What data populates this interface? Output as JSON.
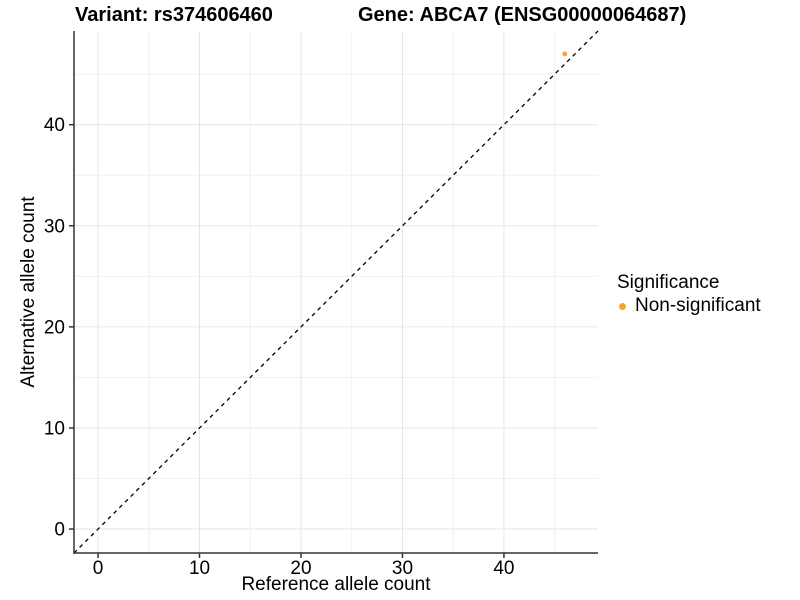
{
  "chart_data": {
    "type": "scatter",
    "title": "Variant: rs374606460        Gene: ABCA7 (ENSG00000064687)",
    "title_parts": [
      "Variant: rs374606460",
      "Gene: ABCA7 (ENSG00000064687)"
    ],
    "xlabel": "Reference allele count",
    "ylabel": "Alternative allele count",
    "xlim": [
      -2.37,
      49.27
    ],
    "ylim": [
      -2.37,
      49.27
    ],
    "x_ticks_major": [
      0,
      10,
      20,
      30,
      40
    ],
    "y_ticks_major": [
      0,
      10,
      20,
      30,
      40
    ],
    "x_ticks_minor": [
      5,
      15,
      25,
      35,
      45
    ],
    "y_ticks_minor": [
      5,
      15,
      25,
      35,
      45
    ],
    "grid": true,
    "points": [
      {
        "x": 46,
        "y": 47,
        "series": "Non-significant"
      }
    ],
    "reference_line": {
      "kind": "abline",
      "slope": 1,
      "intercept": 0,
      "style": "dashed"
    },
    "legend": {
      "position": "right",
      "title": "Significance",
      "items": [
        {
          "label": "Non-significant",
          "color": "#FAA22E",
          "marker": "circle"
        }
      ]
    },
    "colors": {
      "point": "#FAA22E",
      "grid_major": "#E6E6E6",
      "grid_minor": "#F0F0F0",
      "axis": "#333333",
      "reference_line": "#000000",
      "text": "#000000",
      "background": "#FFFFFF"
    }
  }
}
